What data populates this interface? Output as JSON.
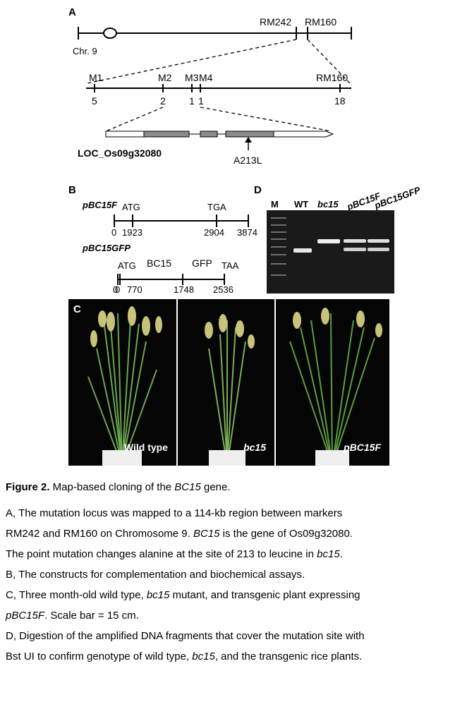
{
  "panel_a": {
    "letter": "A",
    "chromosome_label": "Chr. 9",
    "top_markers": [
      "RM242",
      "RM160"
    ],
    "fine_markers": [
      {
        "name": "M1",
        "count": "5"
      },
      {
        "name": "M2",
        "count": "2"
      },
      {
        "name": "M3",
        "count": "1"
      },
      {
        "name": "M4",
        "count": "1"
      },
      {
        "name": "RM160",
        "count": "18"
      }
    ],
    "gene_label": "LOC_Os09g32080",
    "mutation_label": "A213L"
  },
  "panel_b": {
    "letter": "B",
    "construct1": {
      "name": "pBC15F",
      "labels": [
        "ATG",
        "TGA"
      ],
      "positions": [
        "0",
        "1923",
        "2904",
        "3874"
      ]
    },
    "construct2": {
      "name": "pBC15GFP",
      "labels": [
        "ATG",
        "BC15",
        "GFP",
        "TAA"
      ],
      "positions": [
        "0",
        "770",
        "1748",
        "2536"
      ]
    }
  },
  "panel_c": {
    "letter": "C",
    "labels": [
      "Wild type",
      "bc15",
      "pBC15F"
    ]
  },
  "panel_d": {
    "letter": "D",
    "lanes": [
      "M",
      "WT",
      "bc15",
      "pBC15F",
      "pBC15GFP"
    ]
  },
  "caption": {
    "title_bold": "Figure 2.",
    "title_pre": " Map-based cloning of the ",
    "title_gene": "BC15",
    "title_post": " gene.",
    "a_line1": "A, The mutation locus was mapped to a 114-kb region between markers",
    "a_line2_pre": "RM242 and RM160 on Chromosome 9. ",
    "a_line2_gene": "BC15",
    "a_line2_post": " is the gene of Os09g32080.",
    "a_line3_pre": "The point mutation changes alanine at the site of 213 to leucine in ",
    "a_line3_gene": "bc15",
    "a_line3_post": ".",
    "b_line": "B, The constructs for complementation and biochemical assays.",
    "c_line1_pre": "C, Three month-old wild type, ",
    "c_line1_gene": "bc15",
    "c_line1_post": " mutant, and transgenic plant expressing",
    "c_line2_gene": "pBC15F",
    "c_line2_post": ". Scale bar = 15 cm.",
    "d_line1": "D, Digestion of the amplified DNA fragments that cover the mutation site with",
    "d_line2_pre": "Bst UI to confirm genotype of wild type, ",
    "d_line2_gene": "bc15",
    "d_line2_post": ", and the transgenic rice plants."
  }
}
